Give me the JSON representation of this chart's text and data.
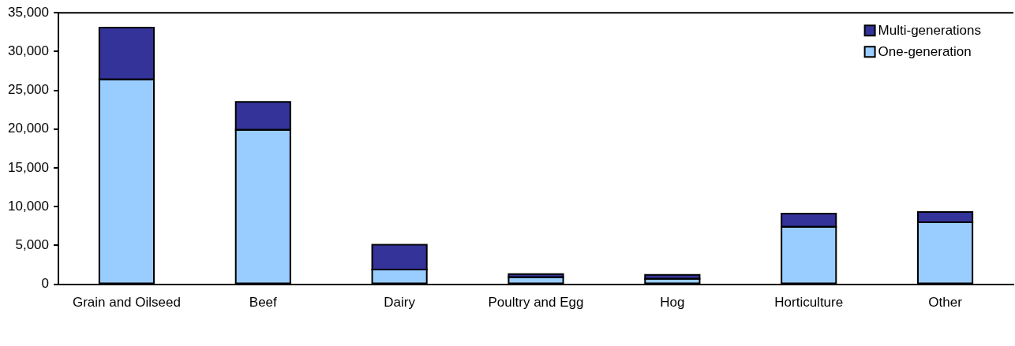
{
  "chart_data": {
    "type": "bar",
    "stacked": true,
    "legend": "top right",
    "categories": [
      "Grain and Oilseed",
      "Beef",
      "Dairy",
      "Poultry and Egg",
      "Hog",
      "Horticulture",
      "Other"
    ],
    "series": [
      {
        "name": "One-generation",
        "color": "#99ccff",
        "values": [
          26400,
          19900,
          1900,
          900,
          700,
          7400,
          8000
        ]
      },
      {
        "name": "Multi-generations",
        "color": "#333399",
        "values": [
          6700,
          3600,
          3200,
          400,
          500,
          1700,
          1300
        ]
      }
    ],
    "ylim": [
      0,
      35000
    ],
    "yticks": [
      {
        "value": 0,
        "label": "0"
      },
      {
        "value": 5000,
        "label": "5,000"
      },
      {
        "value": 10000,
        "label": "10,000"
      },
      {
        "value": 15000,
        "label": "15,000"
      },
      {
        "value": 20000,
        "label": "20,000"
      },
      {
        "value": 25000,
        "label": "25,000"
      },
      {
        "value": 30000,
        "label": "30,000"
      },
      {
        "value": 35000,
        "label": "35,000"
      }
    ]
  }
}
